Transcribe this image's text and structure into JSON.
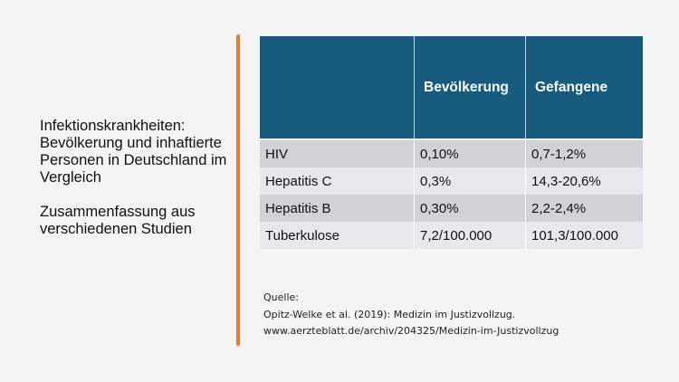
{
  "title": {
    "lines": [
      "Infektionskrankheiten: Bevölkerung und inhaftierte Personen in Deutschland im Vergleich",
      "Zusammenfassung aus verschiedenen Studien"
    ]
  },
  "table": {
    "headers": [
      "",
      "Bevölkerung",
      "Gefangene"
    ],
    "rows": [
      [
        "HIV",
        "0,10%",
        "0,7-1,2%"
      ],
      [
        "Hepatitis C",
        "0,3%",
        "14,3-20,6%"
      ],
      [
        "Hepatitis B",
        "0,30%",
        "2,2-2,4%"
      ],
      [
        "Tuberkulose",
        "7,2/100.000",
        "101,3/100.000"
      ]
    ]
  },
  "source": {
    "label": "Quelle:",
    "citation": "Opitz-Welke et al. (2019): Medizin im Justizvollzug.",
    "url": "www.aerzteblatt.de/archiv/204325/Medizin-im-Justizvollzug"
  },
  "colors": {
    "header": "#175b7e",
    "accent": "#e67a35"
  }
}
